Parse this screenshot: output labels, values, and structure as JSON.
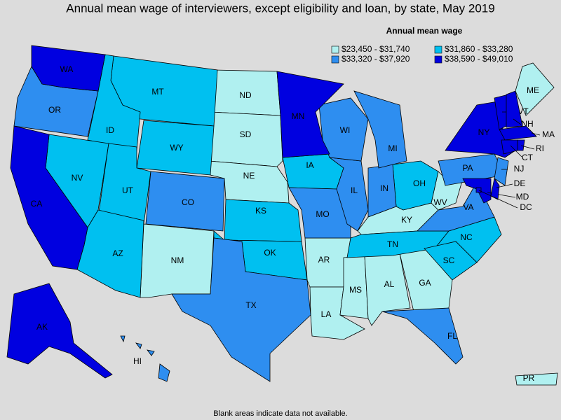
{
  "title": "Annual mean wage of interviewers, except eligibility and loan, by state, May 2019",
  "legend": {
    "title": "Annual mean wage",
    "bins": [
      {
        "label": "$23,450 - $31,740",
        "color": "#b0f0f0",
        "states": [
          "ND",
          "SD",
          "NE",
          "NM",
          "AR",
          "LA",
          "MS",
          "AL",
          "GA",
          "KY",
          "WV",
          "ME",
          "PR"
        ]
      },
      {
        "label": "$31,860 - $33,280",
        "color": "#00c0f0",
        "states": [
          "MT",
          "ID",
          "WY",
          "NV",
          "UT",
          "AZ",
          "KS",
          "OK",
          "IA",
          "OH",
          "TN",
          "NC",
          "SC"
        ]
      },
      {
        "label": "$33,320 - $37,920",
        "color": "#2e8ef0",
        "states": [
          "OR",
          "CO",
          "TX",
          "MO",
          "IL",
          "IN",
          "WI",
          "MI",
          "PA",
          "VA",
          "FL",
          "NJ",
          "HI"
        ]
      },
      {
        "label": "$38,590 - $49,010",
        "color": "#0000e0",
        "states": [
          "WA",
          "CA",
          "MN",
          "AK",
          "NY",
          "VT",
          "NH",
          "MA",
          "CT",
          "RI",
          "MD",
          "DE",
          "DC"
        ]
      }
    ]
  },
  "footnote": "Blank areas indicate data not available."
}
